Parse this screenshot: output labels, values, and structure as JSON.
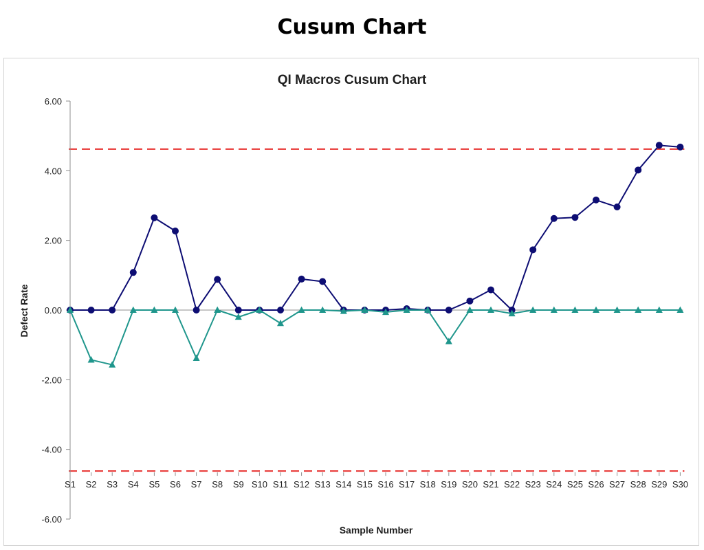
{
  "page": {
    "title": "Cusum Chart"
  },
  "chart_data": {
    "type": "line",
    "title": "QI Macros Cusum Chart",
    "xlabel": "Sample Number",
    "ylabel": "Defect Rate",
    "ylim": [
      -6,
      6
    ],
    "yticks": [
      "6.00",
      "4.00",
      "2.00",
      "0.00",
      "-2.00",
      "-4.00",
      "-6.00"
    ],
    "ytick_values": [
      6,
      4,
      2,
      0,
      -2,
      -4,
      -6
    ],
    "categories": [
      "S1",
      "S2",
      "S3",
      "S4",
      "S5",
      "S6",
      "S7",
      "S8",
      "S9",
      "S10",
      "S11",
      "S12",
      "S13",
      "S14",
      "S15",
      "S16",
      "S17",
      "S18",
      "S19",
      "S20",
      "S21",
      "S22",
      "S23",
      "S24",
      "S25",
      "S26",
      "S27",
      "S28",
      "S29",
      "S30"
    ],
    "series": [
      {
        "key": "upper",
        "color": "#0d0d73",
        "marker": "circle",
        "values": [
          0,
          0,
          0,
          1.08,
          2.65,
          2.27,
          0,
          0.88,
          0,
          0,
          0,
          0.89,
          0.82,
          0,
          0,
          0,
          0.04,
          0,
          0,
          0.26,
          0.58,
          0,
          1.73,
          2.63,
          2.66,
          3.16,
          2.96,
          4.02,
          4.73,
          4.68
        ]
      },
      {
        "key": "lower",
        "color": "#1f968c",
        "marker": "triangle",
        "values": [
          0,
          -1.43,
          -1.57,
          0,
          0,
          0,
          -1.38,
          0,
          -0.2,
          0,
          -0.38,
          0,
          0,
          -0.03,
          0,
          -0.06,
          0,
          0,
          -0.9,
          0,
          0,
          -0.1,
          0,
          0,
          0,
          0,
          0,
          0,
          0,
          0
        ]
      }
    ],
    "control_limits": {
      "upper": 4.62,
      "lower": -4.62,
      "color": "#e8302f",
      "style": "dashed"
    },
    "grid": false,
    "legend": "none"
  }
}
